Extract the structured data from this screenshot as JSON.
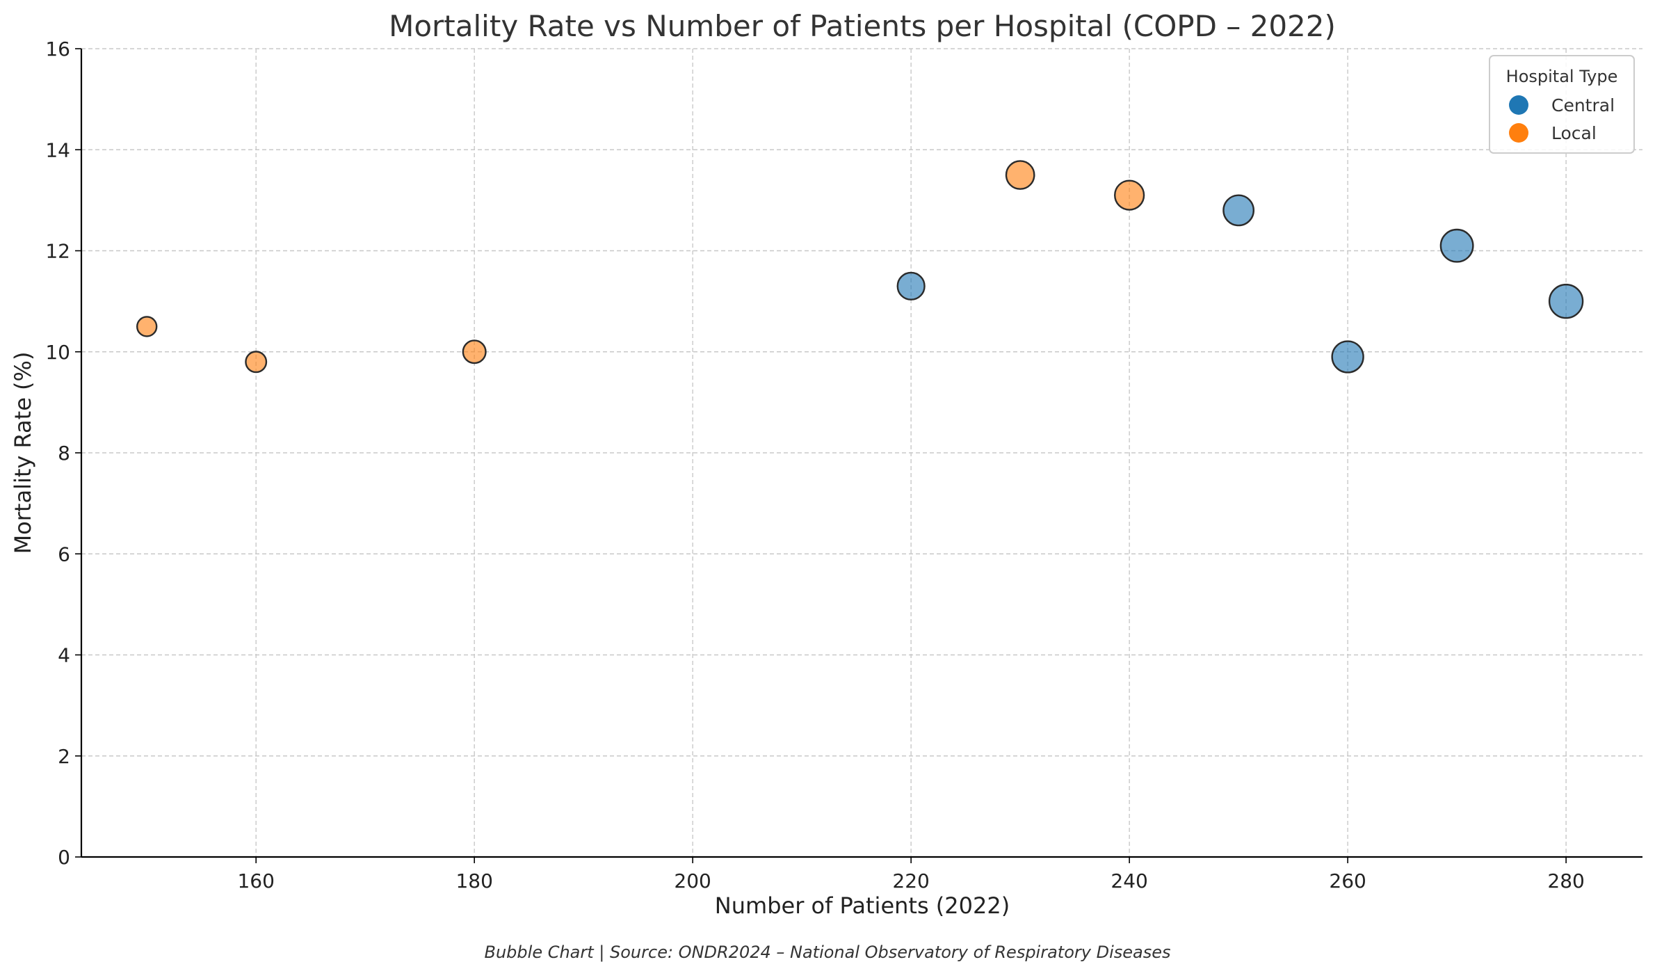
{
  "chart_data": {
    "type": "scatter",
    "subtype": "bubble",
    "title": "Mortality Rate vs Number of Patients per Hospital (COPD – 2022)",
    "xlabel": "Number of Patients (2022)",
    "ylabel": "Mortality Rate (%)",
    "caption": "Bubble Chart | Source: ONDR2024 – National Observatory of Respiratory Diseases",
    "xlim": [
      144,
      287
    ],
    "ylim": [
      0,
      16
    ],
    "x_ticks": [
      160,
      180,
      200,
      220,
      240,
      260,
      280
    ],
    "y_ticks": [
      0,
      2,
      4,
      6,
      8,
      10,
      12,
      14,
      16
    ],
    "grid": true,
    "legend": {
      "title": "Hospital Type",
      "position": "top-right"
    },
    "series": [
      {
        "name": "Central",
        "color": "#1f77b4",
        "points": [
          {
            "x": 220,
            "y": 11.3
          },
          {
            "x": 250,
            "y": 12.8
          },
          {
            "x": 260,
            "y": 9.9
          },
          {
            "x": 270,
            "y": 12.1
          },
          {
            "x": 280,
            "y": 11.0
          }
        ]
      },
      {
        "name": "Local",
        "color": "#ff7f0e",
        "points": [
          {
            "x": 150,
            "y": 10.5
          },
          {
            "x": 160,
            "y": 9.8
          },
          {
            "x": 180,
            "y": 10.0
          },
          {
            "x": 230,
            "y": 13.5
          },
          {
            "x": 240,
            "y": 13.1
          }
        ]
      }
    ]
  }
}
